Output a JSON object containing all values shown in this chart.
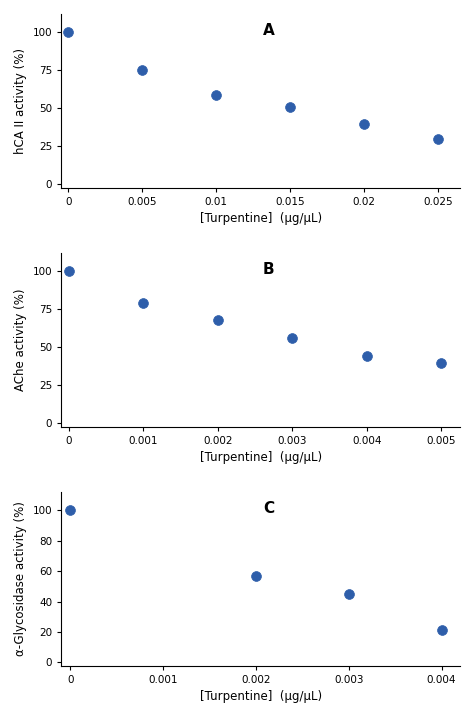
{
  "panels": [
    {
      "label": "A",
      "ylabel": "hCA II activity (%)",
      "xlabel": "[Turpentine]  (μg/μL)",
      "xlim": [
        -0.0005,
        0.0265
      ],
      "ylim": [
        -2,
        112
      ],
      "xticks": [
        0,
        0.005,
        0.01,
        0.015,
        0.02,
        0.025
      ],
      "yticks": [
        0,
        25,
        50,
        75,
        100
      ],
      "xticklabels": [
        "0",
        "0.005",
        "0.01",
        "0.015",
        "0.02",
        "0.025"
      ],
      "yticklabels": [
        "0",
        "25",
        "50",
        "75",
        "100"
      ],
      "scatter_x": [
        0,
        0.005,
        0.01,
        0.015,
        0.02,
        0.025
      ],
      "scatter_y": [
        100,
        75,
        59,
        51,
        40,
        30
      ],
      "k_init": 45
    },
    {
      "label": "B",
      "ylabel": "AChe activity (%)",
      "xlabel": "[Turpentine]  (μg/μL)",
      "xlim": [
        -0.0001,
        0.00525
      ],
      "ylim": [
        -2,
        112
      ],
      "xticks": [
        0,
        0.001,
        0.002,
        0.003,
        0.004,
        0.005
      ],
      "yticks": [
        0,
        25,
        50,
        75,
        100
      ],
      "xticklabels": [
        "0",
        "0.001",
        "0.002",
        "0.003",
        "0.004",
        "0.005"
      ],
      "yticklabels": [
        "0",
        "25",
        "50",
        "75",
        "100"
      ],
      "scatter_x": [
        0,
        0.001,
        0.002,
        0.003,
        0.004,
        0.005
      ],
      "scatter_y": [
        100,
        79,
        68,
        56,
        44,
        40
      ],
      "k_init": 200
    },
    {
      "label": "C",
      "ylabel": "α-Glycosidase activity (%)",
      "xlabel": "[Turpentine]  (μg/μL)",
      "xlim": [
        -0.0001,
        0.0042
      ],
      "ylim": [
        -2,
        112
      ],
      "xticks": [
        0,
        0.001,
        0.002,
        0.003,
        0.004
      ],
      "yticks": [
        0,
        20,
        40,
        60,
        80,
        100
      ],
      "xticklabels": [
        "0",
        "0.001",
        "0.002",
        "0.003",
        "0.004"
      ],
      "yticklabels": [
        "0",
        "20",
        "40",
        "60",
        "80",
        "100"
      ],
      "scatter_x": [
        0,
        0.002,
        0.003,
        0.004
      ],
      "scatter_y": [
        100,
        57,
        45,
        21
      ],
      "k_init": 400
    }
  ],
  "dot_color": "#2E5EAA",
  "dot_size": 50,
  "line_color": "black",
  "line_style": "dotted",
  "line_width": 1.6,
  "bg_color": "white",
  "label_fontsize": 8.5,
  "tick_fontsize": 7.5,
  "panel_label_fontsize": 11,
  "fig_width": 4.74,
  "fig_height": 7.17,
  "dpi": 100
}
